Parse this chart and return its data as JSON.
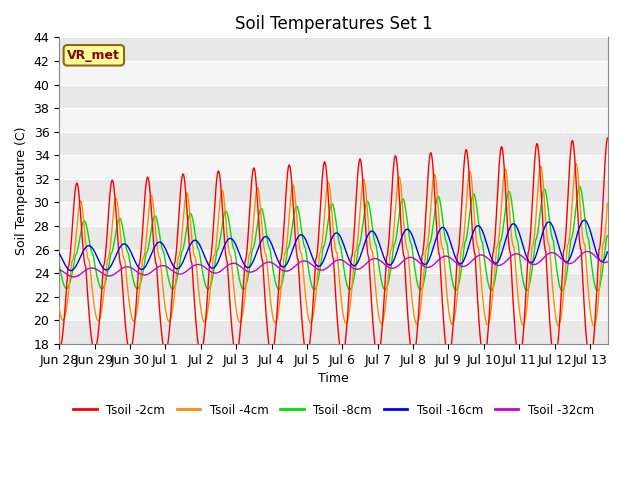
{
  "title": "Soil Temperatures Set 1",
  "ylabel": "Soil Temperature (C)",
  "xlabel": "Time",
  "ylim": [
    18,
    44
  ],
  "xlim_days": 15.5,
  "annotation": "VR_met",
  "colors": {
    "2cm": "#FF0000",
    "4cm": "#FF8C00",
    "8cm": "#00DD00",
    "16cm": "#0000FF",
    "32cm": "#CC00CC"
  },
  "legend_labels": [
    "Tsoil -2cm",
    "Tsoil -4cm",
    "Tsoil -8cm",
    "Tsoil -16cm",
    "Tsoil -32cm"
  ],
  "grid_color": "#CCCCCC",
  "bg_color": "#EBEBEB",
  "tick_labels": [
    "Jun 28",
    "Jun 29",
    "Jun 30",
    "Jul 1",
    "Jul 2",
    "Jul 3",
    "Jul 4",
    "Jul 5",
    "Jul 6",
    "Jul 7",
    "Jul 8",
    "Jul 9",
    "Jul 10",
    "Jul 11",
    "Jul 12",
    "Jul 13"
  ],
  "tick_positions": [
    0,
    1,
    2,
    3,
    4,
    5,
    6,
    7,
    8,
    9,
    10,
    11,
    12,
    13,
    14,
    15
  ],
  "band_colors": [
    "#E8E8E8",
    "#F5F5F5"
  ]
}
